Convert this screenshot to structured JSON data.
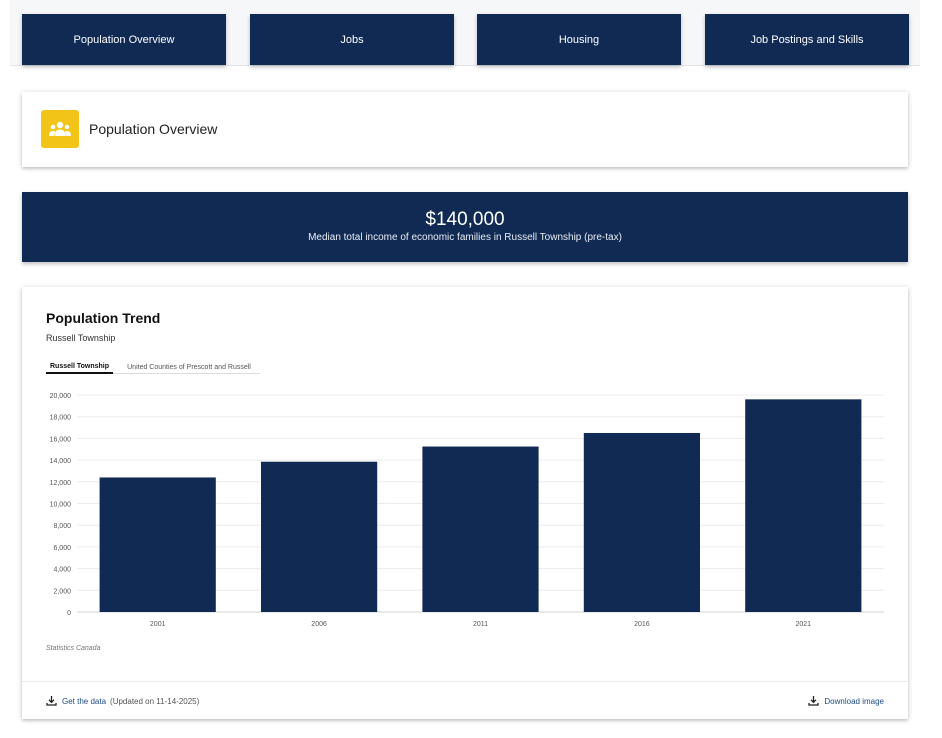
{
  "nav": {
    "items": [
      {
        "label": "Population Overview"
      },
      {
        "label": "Jobs"
      },
      {
        "label": "Housing"
      },
      {
        "label": "Job Postings and Skills"
      }
    ]
  },
  "section": {
    "icon": "people-group-icon",
    "title": "Population Overview"
  },
  "highlight": {
    "value": "$140,000",
    "label": "Median total income of economic families in Russell Township (pre-tax)"
  },
  "chart_card": {
    "title": "Population Trend",
    "subtitle": "Russell Township",
    "tabs": [
      {
        "label": "Russell Township",
        "active": true
      },
      {
        "label": "United Counties of Prescott and Russell",
        "active": false
      }
    ],
    "source": "Statistics Canada"
  },
  "chart_data": {
    "type": "bar",
    "categories": [
      "2001",
      "2006",
      "2011",
      "2016",
      "2021"
    ],
    "values": [
      12400,
      13850,
      15250,
      16500,
      19600
    ],
    "ylim": [
      0,
      20000
    ],
    "yticks": [
      0,
      2000,
      4000,
      6000,
      8000,
      10000,
      12000,
      14000,
      16000,
      18000,
      20000
    ],
    "ytick_labels": [
      "0",
      "2,000",
      "4,000",
      "6,000",
      "8,000",
      "10,000",
      "12,000",
      "14,000",
      "16,000",
      "18,000",
      "20,000"
    ],
    "grid": true,
    "bar_color": "#102a54"
  },
  "footer": {
    "get_data_label": "Get the data",
    "updated_text": "(Updated on 11-14-2025)",
    "download_label": "Download image"
  },
  "colors": {
    "navy": "#102a54",
    "accent_yellow": "#f2c418"
  }
}
